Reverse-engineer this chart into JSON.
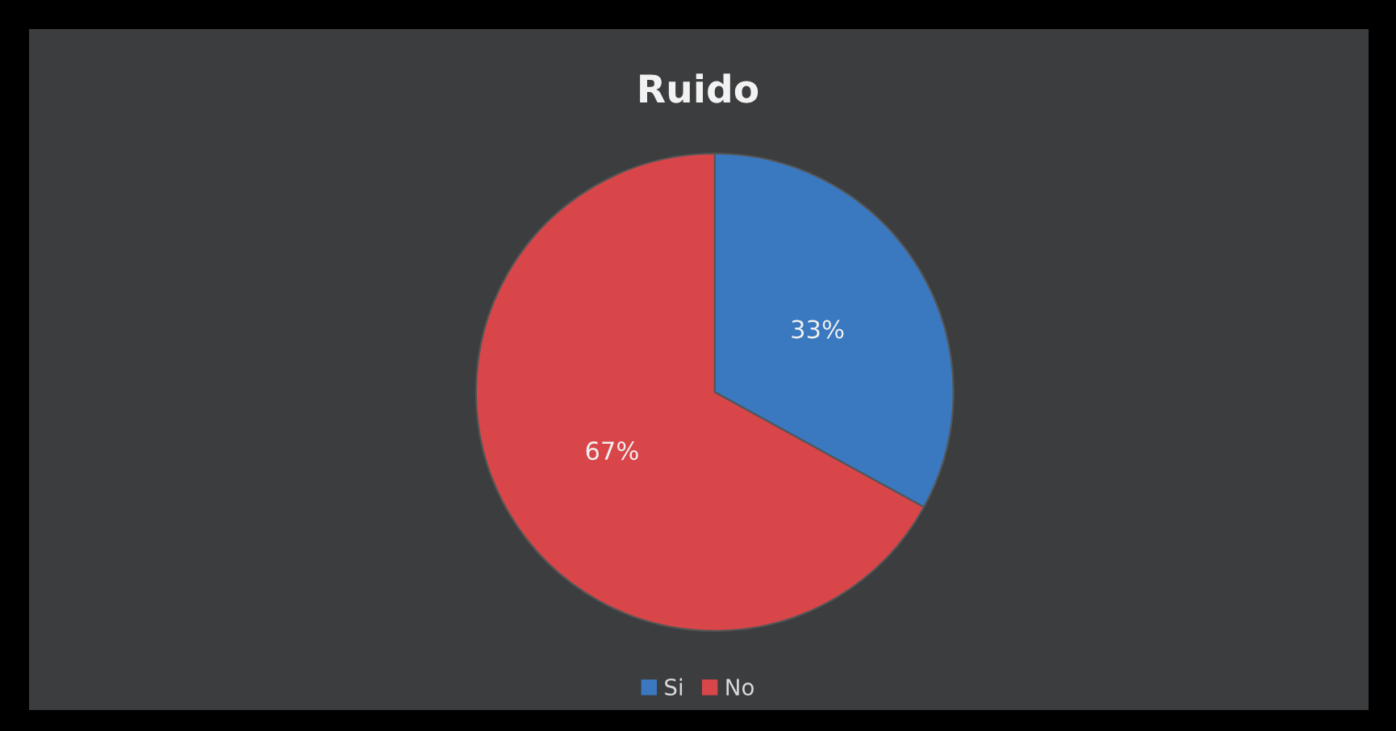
{
  "chart_data": {
    "type": "pie",
    "title": "Ruido",
    "categories": [
      "Si",
      "No"
    ],
    "values": [
      33,
      67
    ],
    "colors": [
      "#3a78c0",
      "#d9464a"
    ],
    "value_labels": [
      "33%",
      "67%"
    ],
    "legend": "bottom"
  }
}
